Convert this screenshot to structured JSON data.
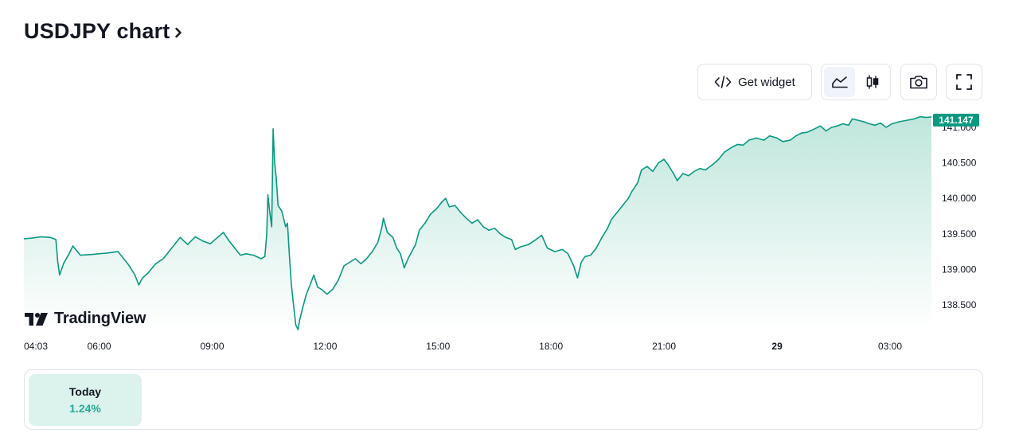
{
  "header": {
    "title": "USDJPY chart"
  },
  "toolbar": {
    "widget_label": "Get widget",
    "icons": [
      "code-icon",
      "area-chart-icon",
      "candles-icon",
      "camera-icon",
      "fullscreen-icon"
    ]
  },
  "brand": {
    "name": "TradingView"
  },
  "periods": [
    {
      "label": "Today",
      "change": "1.24%"
    }
  ],
  "colors": {
    "line": "#089981",
    "fill_top": "#bfe6dc",
    "fill_bottom": "#ffffff",
    "badge": "#089981",
    "positive": "#22ab94"
  },
  "chart_data": {
    "type": "area",
    "symbol": "USDJPY",
    "last_value": "141.147",
    "ylim": [
      138.1,
      141.2
    ],
    "y_ticks": [
      {
        "value": 141.0,
        "label": "141.000"
      },
      {
        "value": 140.5,
        "label": "140.500"
      },
      {
        "value": 140.0,
        "label": "140.000"
      },
      {
        "value": 139.5,
        "label": "139.500"
      },
      {
        "value": 139.0,
        "label": "139.000"
      },
      {
        "value": 138.5,
        "label": "138.500"
      }
    ],
    "x_ticks": [
      {
        "t": 0.05,
        "label": "04:03",
        "bold": false
      },
      {
        "t": 2.0,
        "label": "06:00",
        "bold": false
      },
      {
        "t": 5.0,
        "label": "09:00",
        "bold": false
      },
      {
        "t": 8.0,
        "label": "12:00",
        "bold": false
      },
      {
        "t": 11.0,
        "label": "15:00",
        "bold": false
      },
      {
        "t": 14.0,
        "label": "18:00",
        "bold": false
      },
      {
        "t": 17.0,
        "label": "21:00",
        "bold": false
      },
      {
        "t": 20.0,
        "label": "29",
        "bold": true
      },
      {
        "t": 23.0,
        "label": "03:00",
        "bold": false
      }
    ],
    "series": [
      {
        "points": [
          [
            0.0,
            139.43
          ],
          [
            0.2,
            139.44
          ],
          [
            0.45,
            139.46
          ],
          [
            0.7,
            139.45
          ],
          [
            0.85,
            139.42
          ],
          [
            0.9,
            139.1
          ],
          [
            0.95,
            138.92
          ],
          [
            1.05,
            139.08
          ],
          [
            1.2,
            139.22
          ],
          [
            1.3,
            139.33
          ],
          [
            1.5,
            139.2
          ],
          [
            1.8,
            139.21
          ],
          [
            2.2,
            139.23
          ],
          [
            2.5,
            139.25
          ],
          [
            2.65,
            139.15
          ],
          [
            2.8,
            139.05
          ],
          [
            2.95,
            138.92
          ],
          [
            3.05,
            138.78
          ],
          [
            3.15,
            138.88
          ],
          [
            3.3,
            138.95
          ],
          [
            3.5,
            139.08
          ],
          [
            3.7,
            139.15
          ],
          [
            3.85,
            139.25
          ],
          [
            4.0,
            139.35
          ],
          [
            4.15,
            139.45
          ],
          [
            4.35,
            139.35
          ],
          [
            4.55,
            139.46
          ],
          [
            4.75,
            139.4
          ],
          [
            4.95,
            139.36
          ],
          [
            5.1,
            139.43
          ],
          [
            5.3,
            139.52
          ],
          [
            5.45,
            139.4
          ],
          [
            5.6,
            139.3
          ],
          [
            5.75,
            139.2
          ],
          [
            5.9,
            139.22
          ],
          [
            6.1,
            139.2
          ],
          [
            6.3,
            139.15
          ],
          [
            6.4,
            139.18
          ],
          [
            6.45,
            139.5
          ],
          [
            6.48,
            140.05
          ],
          [
            6.52,
            139.85
          ],
          [
            6.58,
            139.6
          ],
          [
            6.62,
            140.98
          ],
          [
            6.66,
            140.5
          ],
          [
            6.7,
            140.3
          ],
          [
            6.75,
            139.9
          ],
          [
            6.85,
            139.82
          ],
          [
            6.95,
            139.6
          ],
          [
            7.0,
            139.65
          ],
          [
            7.05,
            139.2
          ],
          [
            7.1,
            138.8
          ],
          [
            7.15,
            138.55
          ],
          [
            7.22,
            138.22
          ],
          [
            7.28,
            138.15
          ],
          [
            7.32,
            138.28
          ],
          [
            7.4,
            138.45
          ],
          [
            7.5,
            138.65
          ],
          [
            7.6,
            138.78
          ],
          [
            7.7,
            138.92
          ],
          [
            7.8,
            138.75
          ],
          [
            7.9,
            138.72
          ],
          [
            8.05,
            138.65
          ],
          [
            8.2,
            138.72
          ],
          [
            8.35,
            138.85
          ],
          [
            8.5,
            139.05
          ],
          [
            8.65,
            139.1
          ],
          [
            8.8,
            139.15
          ],
          [
            8.95,
            139.08
          ],
          [
            9.1,
            139.15
          ],
          [
            9.25,
            139.25
          ],
          [
            9.4,
            139.38
          ],
          [
            9.5,
            139.58
          ],
          [
            9.55,
            139.72
          ],
          [
            9.65,
            139.52
          ],
          [
            9.8,
            139.45
          ],
          [
            9.9,
            139.3
          ],
          [
            10.0,
            139.22
          ],
          [
            10.1,
            139.02
          ],
          [
            10.2,
            139.15
          ],
          [
            10.3,
            139.25
          ],
          [
            10.4,
            139.35
          ],
          [
            10.5,
            139.55
          ],
          [
            10.65,
            139.65
          ],
          [
            10.8,
            139.78
          ],
          [
            10.95,
            139.85
          ],
          [
            11.1,
            139.95
          ],
          [
            11.2,
            140.0
          ],
          [
            11.3,
            139.88
          ],
          [
            11.45,
            139.9
          ],
          [
            11.6,
            139.8
          ],
          [
            11.75,
            139.72
          ],
          [
            11.9,
            139.65
          ],
          [
            12.05,
            139.7
          ],
          [
            12.2,
            139.6
          ],
          [
            12.35,
            139.55
          ],
          [
            12.5,
            139.58
          ],
          [
            12.65,
            139.5
          ],
          [
            12.8,
            139.45
          ],
          [
            12.95,
            139.42
          ],
          [
            13.05,
            139.28
          ],
          [
            13.2,
            139.32
          ],
          [
            13.4,
            139.35
          ],
          [
            13.6,
            139.42
          ],
          [
            13.75,
            139.48
          ],
          [
            13.9,
            139.3
          ],
          [
            14.1,
            139.25
          ],
          [
            14.3,
            139.28
          ],
          [
            14.45,
            139.22
          ],
          [
            14.6,
            139.05
          ],
          [
            14.7,
            138.88
          ],
          [
            14.8,
            139.1
          ],
          [
            14.9,
            139.18
          ],
          [
            15.05,
            139.2
          ],
          [
            15.2,
            139.3
          ],
          [
            15.35,
            139.45
          ],
          [
            15.5,
            139.58
          ],
          [
            15.6,
            139.7
          ],
          [
            15.75,
            139.8
          ],
          [
            15.9,
            139.9
          ],
          [
            16.05,
            140.0
          ],
          [
            16.15,
            140.1
          ],
          [
            16.3,
            140.22
          ],
          [
            16.4,
            140.4
          ],
          [
            16.55,
            140.45
          ],
          [
            16.7,
            140.38
          ],
          [
            16.85,
            140.5
          ],
          [
            17.0,
            140.55
          ],
          [
            17.1,
            140.48
          ],
          [
            17.25,
            140.35
          ],
          [
            17.35,
            140.25
          ],
          [
            17.5,
            140.35
          ],
          [
            17.65,
            140.32
          ],
          [
            17.8,
            140.38
          ],
          [
            17.95,
            140.42
          ],
          [
            18.1,
            140.4
          ],
          [
            18.3,
            140.48
          ],
          [
            18.45,
            140.55
          ],
          [
            18.6,
            140.65
          ],
          [
            18.8,
            140.72
          ],
          [
            18.95,
            140.76
          ],
          [
            19.1,
            140.75
          ],
          [
            19.25,
            140.82
          ],
          [
            19.45,
            140.85
          ],
          [
            19.65,
            140.82
          ],
          [
            19.8,
            140.88
          ],
          [
            20.0,
            140.85
          ],
          [
            20.15,
            140.8
          ],
          [
            20.35,
            140.82
          ],
          [
            20.5,
            140.88
          ],
          [
            20.65,
            140.92
          ],
          [
            20.8,
            140.93
          ],
          [
            21.0,
            140.98
          ],
          [
            21.15,
            141.02
          ],
          [
            21.3,
            140.95
          ],
          [
            21.45,
            141.0
          ],
          [
            21.6,
            141.02
          ],
          [
            21.75,
            141.05
          ],
          [
            21.9,
            141.03
          ],
          [
            22.0,
            141.12
          ],
          [
            22.15,
            141.1
          ],
          [
            22.3,
            141.08
          ],
          [
            22.45,
            141.05
          ],
          [
            22.6,
            141.03
          ],
          [
            22.75,
            141.06
          ],
          [
            22.9,
            141.0
          ],
          [
            23.05,
            141.05
          ],
          [
            23.25,
            141.08
          ],
          [
            23.45,
            141.1
          ],
          [
            23.65,
            141.12
          ],
          [
            23.8,
            141.15
          ],
          [
            23.95,
            141.14
          ],
          [
            24.1,
            141.147
          ]
        ]
      }
    ]
  }
}
